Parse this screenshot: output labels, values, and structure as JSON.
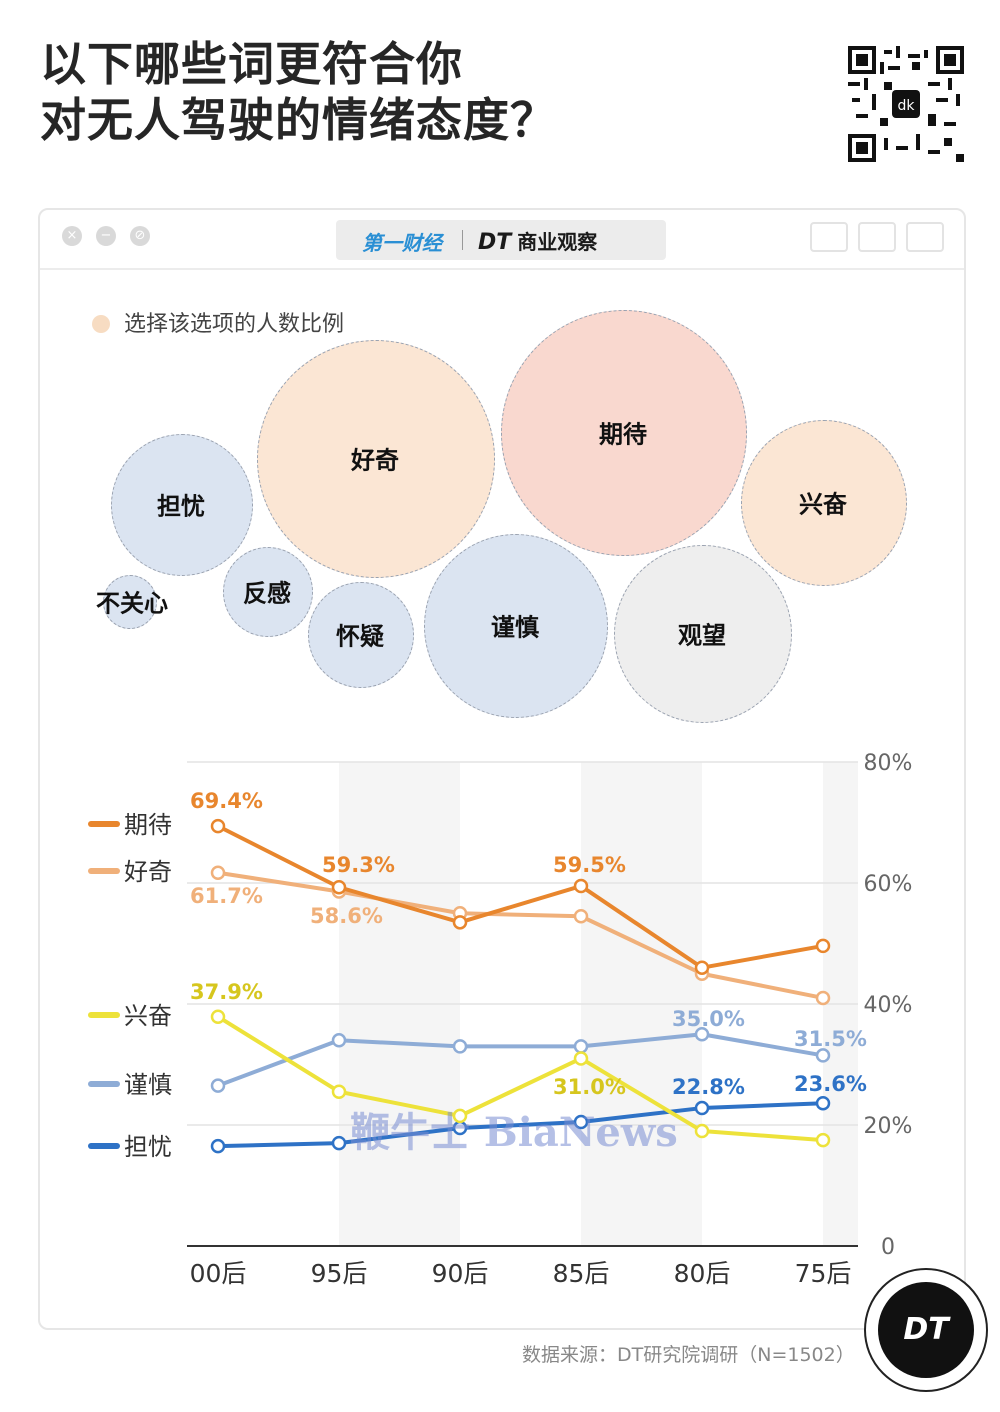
{
  "title_line1": "以下哪些词更符合你",
  "title_line2": "对无人驾驶的情绪态度？",
  "card": {
    "logo_left": "第一财经",
    "logo_right": "DT",
    "logo_right_sub": "商业观察"
  },
  "bubble_legend": "选择该选项的人数比例",
  "bubbles": [
    {
      "label": "好奇",
      "color": "#fbe6d4"
    },
    {
      "label": "期待",
      "color": "#f9d8cf"
    },
    {
      "label": "兴奋",
      "color": "#fbe6d4"
    },
    {
      "label": "担忧",
      "color": "#dbe4f1"
    },
    {
      "label": "不关心",
      "color": "#dbe4f1"
    },
    {
      "label": "反感",
      "color": "#dbe4f1"
    },
    {
      "label": "怀疑",
      "color": "#dbe4f1"
    },
    {
      "label": "谨慎",
      "color": "#dbe4f1"
    },
    {
      "label": "观望",
      "color": "#eeeeee"
    }
  ],
  "chart_data": {
    "type": "line",
    "categories": [
      "00后",
      "95后",
      "90后",
      "85后",
      "80后",
      "75后"
    ],
    "y_ticks": [
      "0",
      "20%",
      "40%",
      "60%",
      "80%"
    ],
    "ylim": [
      0,
      80
    ],
    "y_axis_side": "right",
    "grid": true,
    "legend_position": "left",
    "series": [
      {
        "name": "期待",
        "color": "#e8862d",
        "values": [
          69.4,
          59.3,
          53.5,
          59.5,
          46.0,
          49.6
        ]
      },
      {
        "name": "好奇",
        "color": "#f0b07a",
        "values": [
          61.7,
          58.6,
          55.0,
          54.5,
          45.0,
          41.0
        ]
      },
      {
        "name": "兴奋",
        "color": "#ede23a",
        "values": [
          37.9,
          25.5,
          21.5,
          31.0,
          19.0,
          17.5
        ]
      },
      {
        "name": "谨慎",
        "color": "#8eacd6",
        "values": [
          26.5,
          34.0,
          33.0,
          33.0,
          35.0,
          31.5
        ]
      },
      {
        "name": "担忧",
        "color": "#2e72c6",
        "values": [
          16.5,
          17.0,
          19.5,
          20.5,
          22.8,
          23.6
        ]
      }
    ],
    "data_labels": [
      {
        "text": "69.4%",
        "color": "#e8862d"
      },
      {
        "text": "59.3%",
        "color": "#e8862d"
      },
      {
        "text": "59.5%",
        "color": "#e8862d"
      },
      {
        "text": "61.7%",
        "color": "#f0b07a"
      },
      {
        "text": "58.6%",
        "color": "#f0b07a"
      },
      {
        "text": "37.9%",
        "color": "#d6c61e"
      },
      {
        "text": "31.0%",
        "color": "#d6c61e"
      },
      {
        "text": "35.0%",
        "color": "#8eacd6"
      },
      {
        "text": "31.5%",
        "color": "#8eacd6"
      },
      {
        "text": "22.8%",
        "color": "#2e72c6"
      },
      {
        "text": "23.6%",
        "color": "#2e72c6"
      }
    ]
  },
  "watermark": "鞭牛士 BiaNews",
  "source": "数据来源：DT研究院调研（N=1502）",
  "badge": "DT"
}
